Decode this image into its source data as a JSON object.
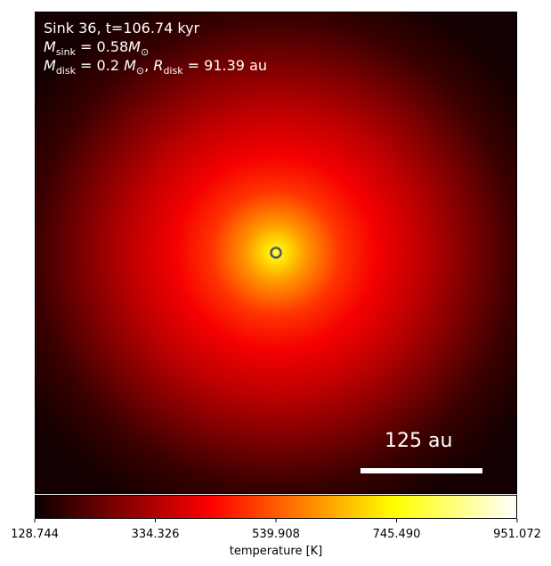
{
  "chart_data": {
    "type": "heatmap",
    "title": "",
    "annotations": {
      "line1": "Sink 36, t=106.74 kyr",
      "sink_mass": {
        "symbol": "M",
        "subscript": "sink",
        "value": "0.58",
        "unit": "M",
        "unit_sub": "⊙"
      },
      "disk": {
        "mass_symbol": "M",
        "mass_sub": "disk",
        "mass_value": "0.2",
        "mass_unit": "M",
        "mass_unit_sub": "⊙",
        "radius_symbol": "R",
        "radius_sub": "disk",
        "radius_value": "91.39",
        "radius_unit": "au"
      },
      "scalebar_label": "125 au"
    },
    "colorbar": {
      "label": "temperature [K]",
      "colormap": "hot",
      "range": [
        128.744,
        951.072
      ],
      "ticks": [
        "128.744",
        "334.326",
        "539.908",
        "745.490",
        "951.072"
      ]
    },
    "field": {
      "description_peak_location": "center",
      "max_temperature": 951.072,
      "min_temperature": 128.744
    },
    "sink_marker": {
      "type": "circle",
      "color": "#555555"
    },
    "colors": {
      "text": "#ffffff",
      "scalebar": "#ffffff"
    }
  }
}
